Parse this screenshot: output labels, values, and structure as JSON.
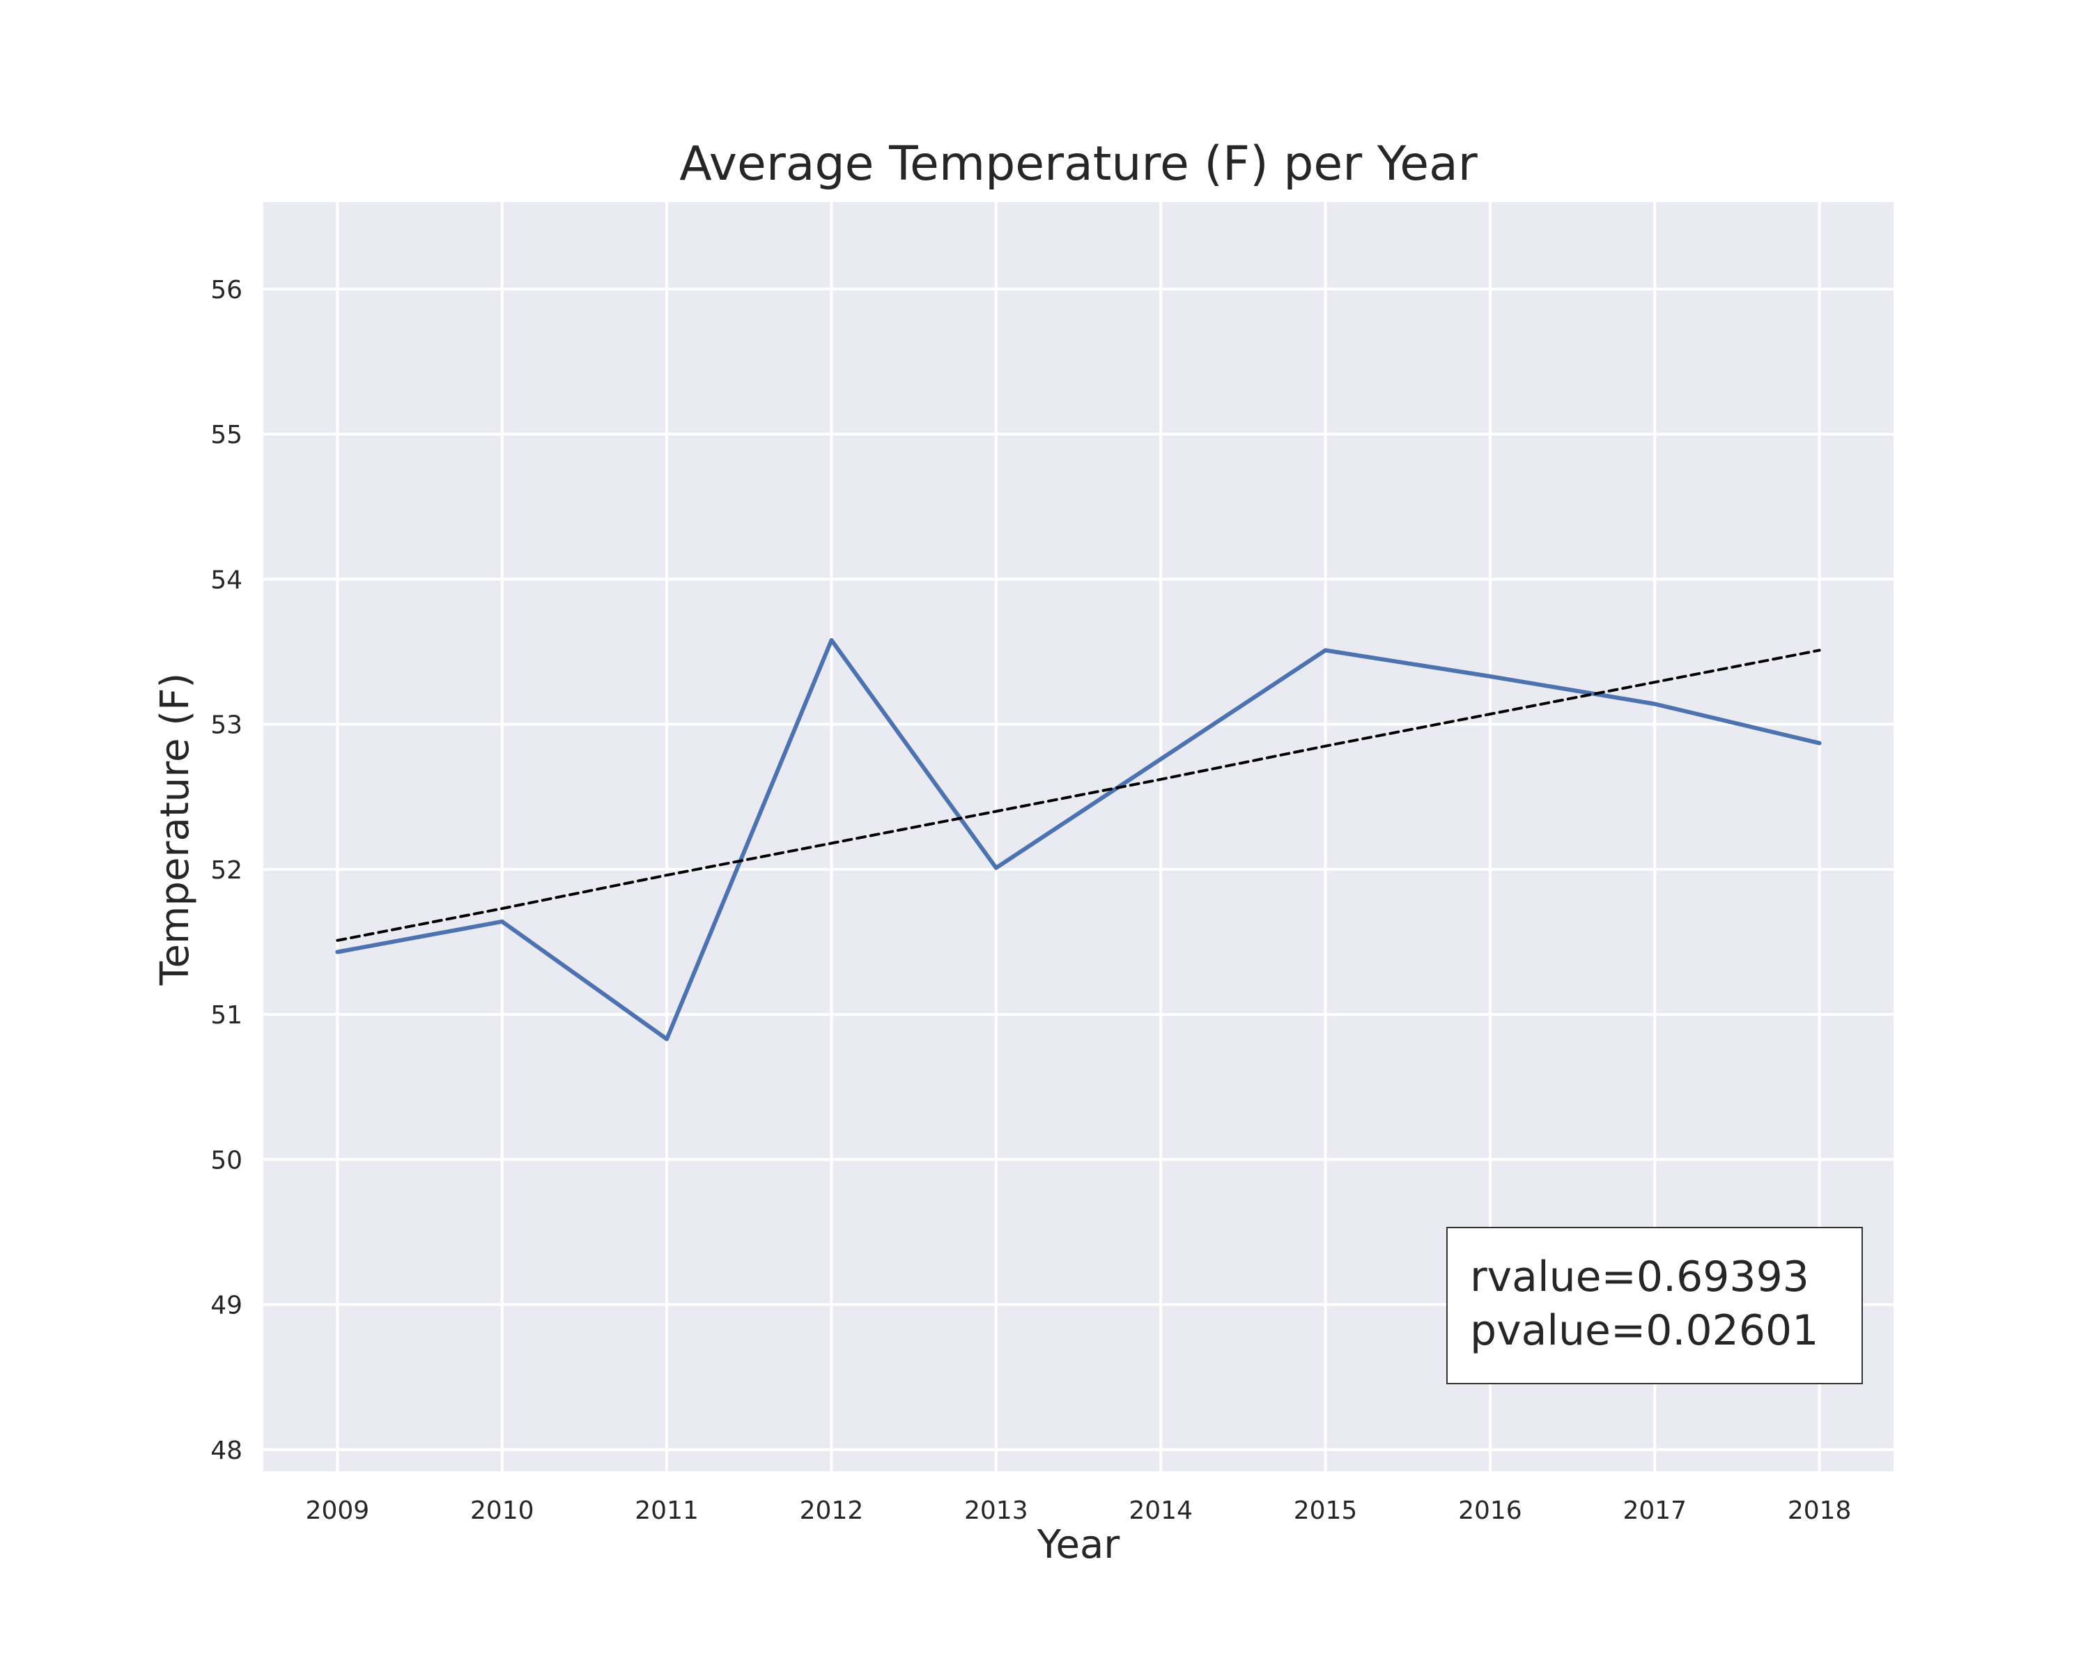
{
  "chart_data": {
    "type": "line",
    "title": "Average Temperature (F) per Year",
    "xlabel": "Year",
    "ylabel": "Temperature (F)",
    "x": [
      2009,
      2010,
      2011,
      2012,
      2013,
      2014,
      2015,
      2016,
      2017,
      2018
    ],
    "xlim": [
      2008.55,
      2018.45
    ],
    "ylim": [
      47.85,
      56.6
    ],
    "y_ticks": [
      48,
      49,
      50,
      51,
      52,
      53,
      54,
      55,
      56
    ],
    "grid": true,
    "series": [
      {
        "values": [
          51.43,
          51.64,
          50.83,
          53.58,
          52.01,
          52.76,
          53.51,
          53.33,
          53.14,
          52.87
        ],
        "color": "#4c72b0",
        "style": "solid"
      },
      {
        "values": [
          51.51,
          51.73,
          51.96,
          52.18,
          52.4,
          52.62,
          52.85,
          53.07,
          53.29,
          53.51
        ],
        "color": "#000000",
        "style": "dashed"
      }
    ],
    "annotations": [
      "rvalue=0.69393",
      "pvalue=0.02601"
    ],
    "plot_background": "#eaeaf2",
    "grid_color": "#ffffff"
  }
}
